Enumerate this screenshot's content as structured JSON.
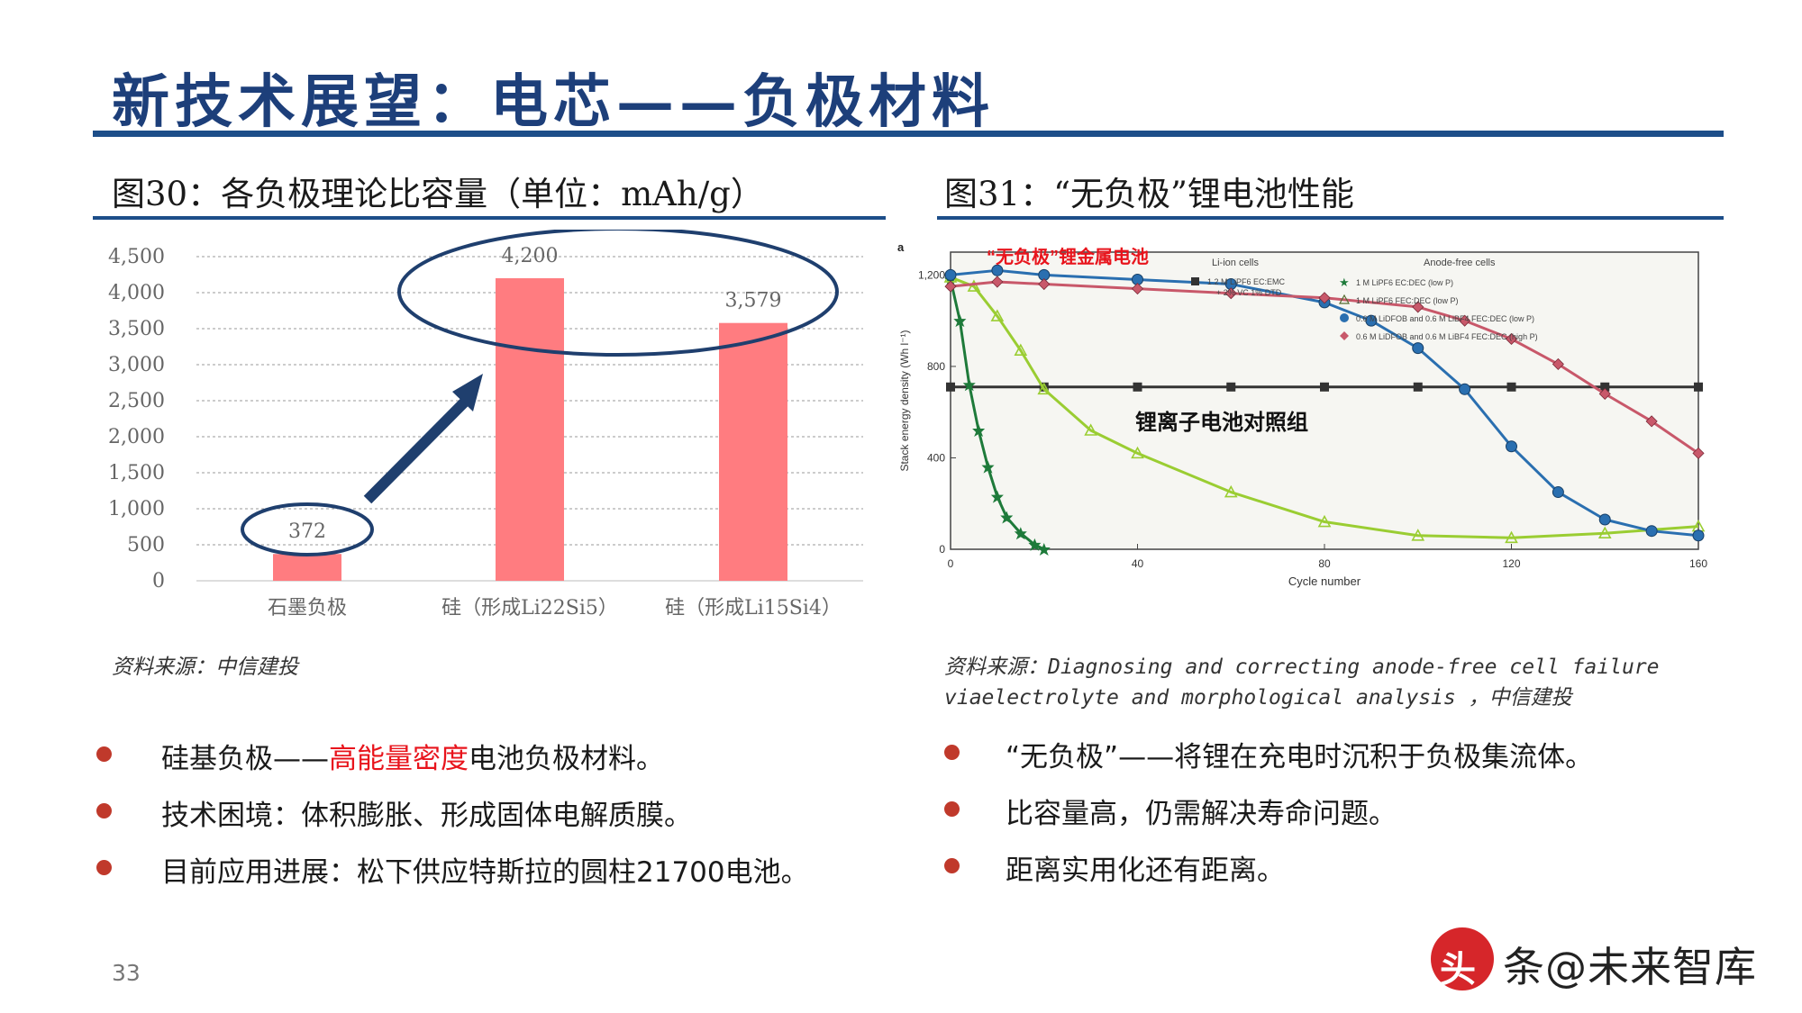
{
  "slide": {
    "title": "新技术展望：电芯——负极材料",
    "page_number": "33"
  },
  "figure30": {
    "title": "图30：各负极理论比容量（单位：mAh/g）",
    "source": "资料来源：中信建投"
  },
  "figure31": {
    "title": "图31：“无负极”锂电池性能",
    "panel_letter": "a",
    "source_line1": "资料来源：Diagnosing and correcting anode-free cell failure",
    "source_line2": "viaelectrolyte and morphological analysis ，中信建投",
    "callout_anode_free": "“无负极”锂金属电池",
    "callout_li_ion": "锂离子电池对照组",
    "legend_li_ion_heading": "Li-ion cells",
    "legend_li_ion_entry_1": "1.2 M LiPF6 EC:EMC",
    "legend_li_ion_entry_2": "+ 2% VC 1% DTD",
    "legend_anode_free_heading": "Anode-free cells",
    "legend_anode_free_entries": [
      "1 M LiPF6 EC:DEC (low P)",
      "1 M LiPF6 FEC:DEC (low P)",
      "0.6 M LiDFOB and 0.6 M LiBF4 FEC:DEC (low P)",
      "0.6 M LiDFOB and 0.6 M LiBF4 FEC:DEC (high P)"
    ],
    "xlabel": "Cycle number",
    "ylabel": "Stack energy density (Wh l⁻¹)",
    "xticks": [
      "0",
      "40",
      "80",
      "120",
      "160"
    ],
    "yticks": [
      "0",
      "400",
      "800",
      "1,200"
    ]
  },
  "chart_data": [
    {
      "type": "bar",
      "categories": [
        "石墨负极",
        "硅（形成Li22Si5）",
        "硅（形成Li15Si4）"
      ],
      "values": [
        372,
        4200,
        3579
      ],
      "data_labels": [
        "372",
        "4,200",
        "3,579"
      ],
      "ylim": [
        0,
        4500
      ],
      "yticks": [
        "0",
        "500",
        "1,000",
        "1,500",
        "2,000",
        "2,500",
        "3,000",
        "3,500",
        "4,000",
        "4,500"
      ],
      "grid": true,
      "bar_color": "#ff7c80",
      "annotation_color": "#1f3f6e"
    },
    {
      "type": "line",
      "xlabel": "Cycle number",
      "ylabel": "Stack energy density (Wh l⁻¹)",
      "xlim": [
        0,
        160
      ],
      "ylim": [
        0,
        1300
      ],
      "series": [
        {
          "name": "1.2 M LiPF6 EC:EMC + 2% VC 1% DTD",
          "color": "#333333",
          "marker": "square",
          "x": [
            0,
            20,
            40,
            60,
            80,
            100,
            120,
            140,
            160
          ],
          "y": [
            710,
            710,
            710,
            710,
            710,
            710,
            710,
            710,
            710
          ]
        },
        {
          "name": "1 M LiPF6 EC:DEC (low P)",
          "color": "#1e7a3a",
          "marker": "star",
          "x": [
            0,
            2,
            4,
            6,
            8,
            10,
            12,
            15,
            18,
            20
          ],
          "y": [
            1180,
            1000,
            720,
            520,
            360,
            230,
            140,
            70,
            20,
            0
          ]
        },
        {
          "name": "1 M LiPF6 FEC:DEC (low P)",
          "color": "#9acd32",
          "marker": "triangle",
          "x": [
            0,
            5,
            10,
            15,
            20,
            30,
            40,
            60,
            80,
            100,
            120,
            140,
            160
          ],
          "y": [
            1190,
            1150,
            1020,
            870,
            700,
            520,
            420,
            250,
            120,
            60,
            50,
            70,
            100
          ]
        },
        {
          "name": "0.6 M LiDFOB and 0.6 M LiBF4 FEC:DEC (low P)",
          "color": "#2a6fb0",
          "marker": "circle",
          "x": [
            0,
            10,
            20,
            40,
            60,
            80,
            90,
            100,
            110,
            120,
            130,
            140,
            150,
            160
          ],
          "y": [
            1200,
            1220,
            1200,
            1180,
            1160,
            1080,
            1000,
            880,
            700,
            450,
            250,
            130,
            80,
            60
          ]
        },
        {
          "name": "0.6 M LiDFOB and 0.6 M LiBF4 FEC:DEC (high P)",
          "color": "#c8586a",
          "marker": "diamond",
          "x": [
            0,
            10,
            20,
            40,
            60,
            80,
            100,
            110,
            120,
            130,
            140,
            150,
            160
          ],
          "y": [
            1150,
            1170,
            1160,
            1140,
            1120,
            1100,
            1060,
            1000,
            920,
            810,
            680,
            560,
            420
          ]
        }
      ]
    }
  ],
  "bullets_left": [
    {
      "prefix": "硅基负极——",
      "highlight": "高能量密度",
      "suffix": "电池负极材料。"
    },
    {
      "prefix": "技术困境：体积膨胀、形成固体电解质膜。",
      "highlight": "",
      "suffix": ""
    },
    {
      "prefix": "目前应用进展：松下供应特斯拉的圆柱21700电池。",
      "highlight": "",
      "suffix": ""
    }
  ],
  "bullets_right": [
    "“无负极”——将锂在充电时沉积于负极集流体。",
    "比容量高，仍需解决寿命问题。",
    "距离实用化还有距离。"
  ],
  "watermark": {
    "seal_text": "头",
    "text": "条@未来智库"
  }
}
